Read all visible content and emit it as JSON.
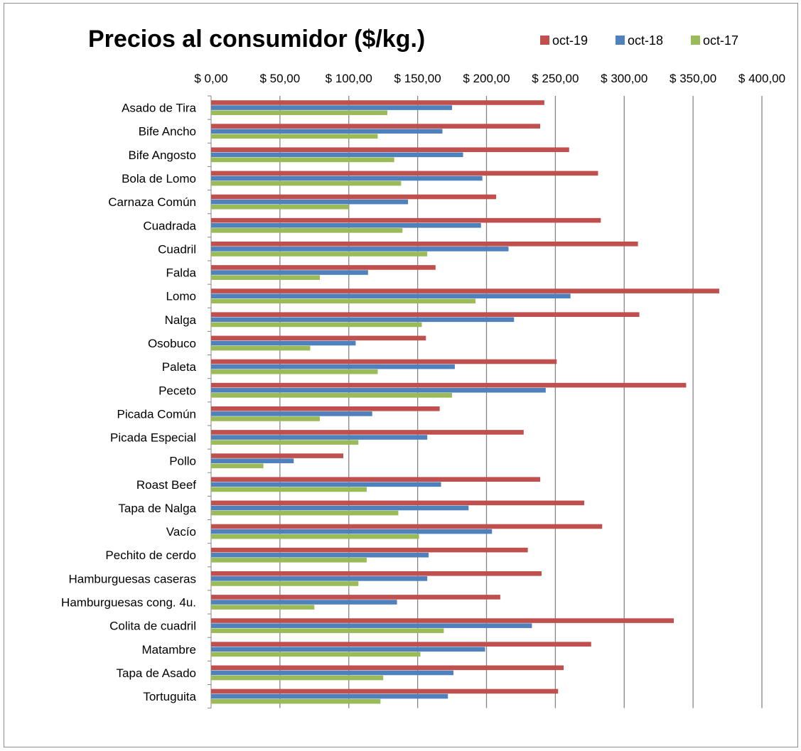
{
  "chart_data": {
    "type": "bar",
    "orientation": "horizontal",
    "title": "Precios al consumidor ($/kg.)",
    "xlabel": "",
    "ylabel": "",
    "xlim": [
      0,
      400
    ],
    "x_ticks": [
      0,
      50,
      100,
      150,
      200,
      250,
      300,
      350,
      400
    ],
    "x_tick_labels": [
      "$ 0,00",
      "$ 50,00",
      "$ 100,00",
      "$ 150,00",
      "$ 200,00",
      "$ 250,00",
      "$ 300,00",
      "$ 350,00",
      "$ 400,00"
    ],
    "x_axis_position": "top",
    "grid": true,
    "legend_position": "top-right",
    "categories": [
      "Asado de Tira",
      "Bife Ancho",
      "Bife Angosto",
      "Bola de Lomo",
      "Carnaza Común",
      "Cuadrada",
      "Cuadril",
      "Falda",
      "Lomo",
      "Nalga",
      "Osobuco",
      "Paleta",
      "Peceto",
      "Picada Común",
      "Picada Especial",
      "Pollo",
      "Roast Beef",
      "Tapa de Nalga",
      "Vacío",
      "Pechito de cerdo",
      "Hamburguesas caseras",
      "Hamburguesas cong. 4u.",
      "Colita de cuadril",
      "Matambre",
      "Tapa de Asado",
      "Tortuguita"
    ],
    "series": [
      {
        "name": "oct-19",
        "color": "#c0504d",
        "values": [
          242,
          239,
          260,
          281,
          207,
          283,
          310,
          163,
          369,
          311,
          156,
          251,
          345,
          166,
          227,
          96,
          239,
          271,
          284,
          230,
          240,
          210,
          336,
          276,
          256,
          252
        ]
      },
      {
        "name": "oct-18",
        "color": "#4f81bd",
        "values": [
          175,
          168,
          183,
          197,
          143,
          196,
          216,
          114,
          261,
          220,
          105,
          177,
          243,
          117,
          157,
          60,
          167,
          187,
          204,
          158,
          157,
          135,
          233,
          199,
          176,
          172
        ]
      },
      {
        "name": "oct-17",
        "color": "#9bbb59",
        "values": [
          128,
          121,
          133,
          138,
          100,
          139,
          157,
          79,
          192,
          153,
          72,
          121,
          175,
          79,
          107,
          38,
          113,
          136,
          151,
          113,
          107,
          75,
          169,
          152,
          125,
          123
        ]
      }
    ]
  }
}
